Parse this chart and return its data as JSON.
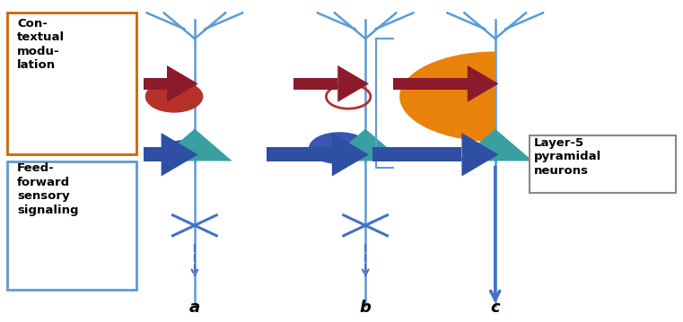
{
  "fig_width": 7.61,
  "fig_height": 3.59,
  "bg_color": "#ffffff",
  "colors": {
    "dendrite_line": "#5b9bd5",
    "teal_triangle": "#3a9fa0",
    "red_ellipse_a": "#b5312a",
    "red_ellipse_b": "#b5312a",
    "orange_ellipse_c": "#e8820a",
    "blue_ellipse_a": "#2e4fa3",
    "blue_ellipse_b": "#3a56b0",
    "red_arrow": "#8b1a2a",
    "blue_arrow_ff": "#2e4fa3",
    "output_arrow": "#4472c4",
    "cross_color": "#4472c4",
    "box_orange": "#cc6600",
    "box_blue": "#5b9bd5",
    "box_gray": "#888888",
    "bracket_color": "#5b9bd5"
  },
  "label_a": "a",
  "label_b": "b",
  "label_c": "c",
  "text_contextual": "Con-\ntextual\nmodu-\nlation",
  "text_feedforward": "Feed-\nforward\nsensory\nsignaling",
  "text_layer5": "Layer-5\npyramidal\nneurons"
}
